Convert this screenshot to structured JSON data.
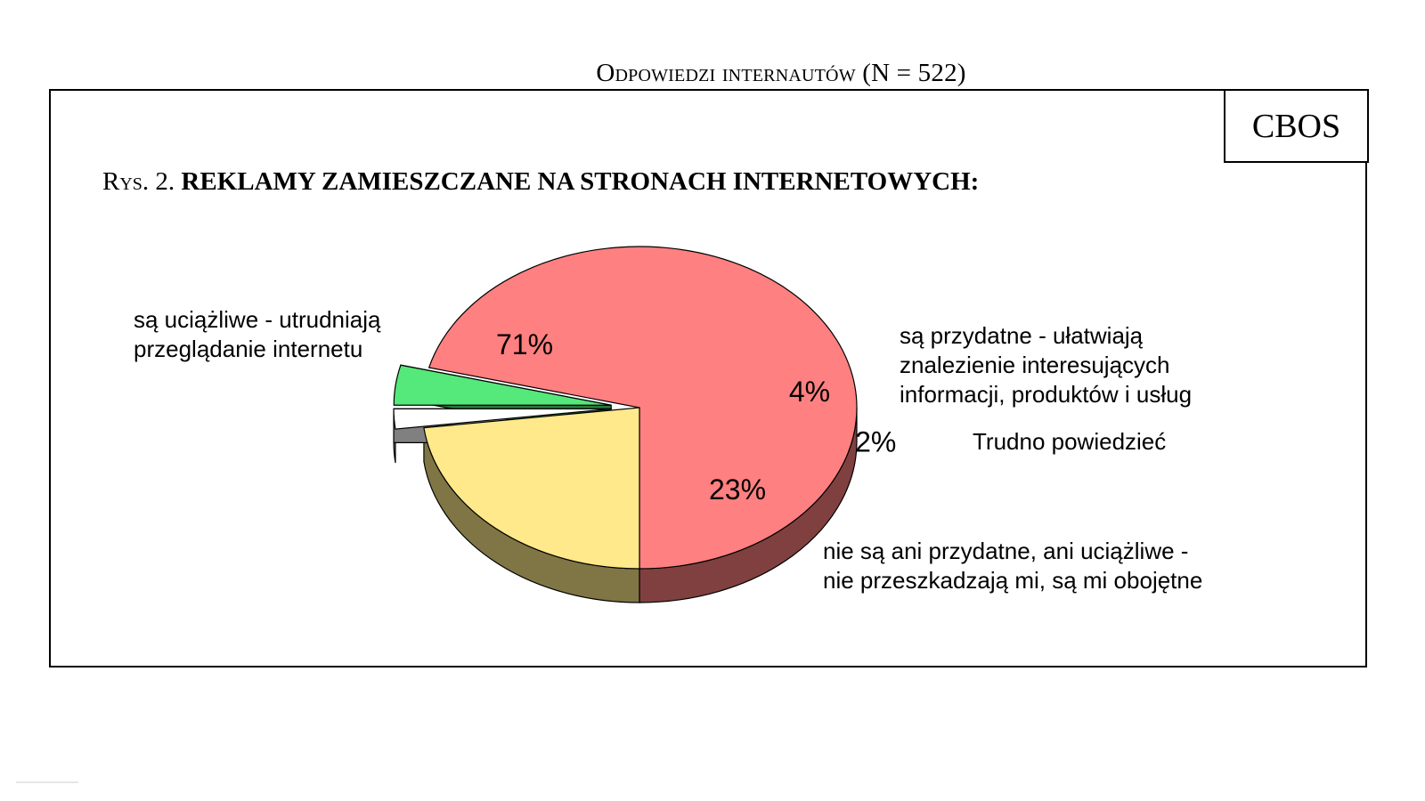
{
  "header": {
    "caption": "Odpowiedzi internautów (N = 522)"
  },
  "logo": {
    "text": "CBOS"
  },
  "figure": {
    "prefix": "Rys. 2.",
    "title": "REKLAMY ZAMIESZCZANE NA STRONACH INTERNETOWYCH:"
  },
  "chart_data": {
    "type": "pie",
    "style": "3d",
    "title": "REKLAMY ZAMIESZCZANE NA STRONACH INTERNETOWYCH:",
    "slices": [
      {
        "category": [
          "są uciążliwe - utrudniają",
          "przeglądanie internetu"
        ],
        "value": 71,
        "label": "71%",
        "color": "#ff8080",
        "exploded": false
      },
      {
        "category": [
          "nie są ani przydatne, ani uciążliwe -",
          "nie przeszkadzają mi, są mi obojętne"
        ],
        "value": 23,
        "label": "23%",
        "color": "#ffe98a",
        "exploded": false
      },
      {
        "category": [
          "Trudno powiedzieć"
        ],
        "value": 2,
        "label": "2%",
        "color": "#ffffff",
        "exploded": true
      },
      {
        "category": [
          "są przydatne - ułatwiają",
          "znalezienie interesujących",
          "informacji, produktów i usług"
        ],
        "value": 4,
        "label": "4%",
        "color": "#55e87a",
        "exploded": true
      }
    ]
  }
}
